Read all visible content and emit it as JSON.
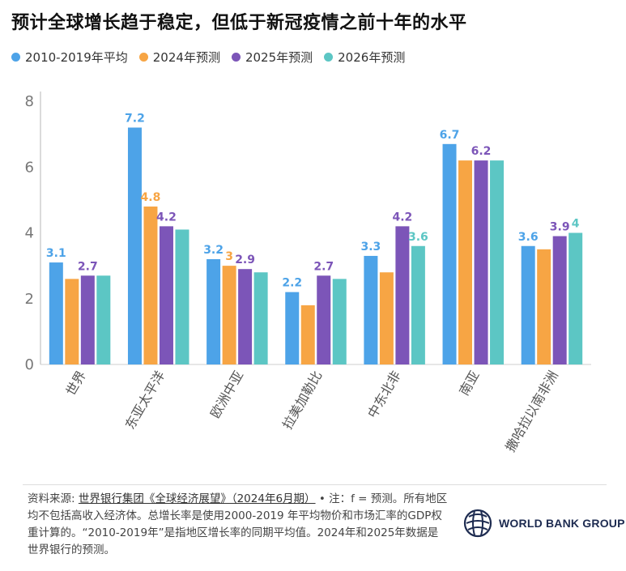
{
  "title": "预计全球增长趋于稳定，但低于新冠疫情之前十年的水平",
  "chart_data": {
    "type": "bar",
    "categories": [
      "世界",
      "东亚太平洋",
      "欧洲中亚",
      "拉美加勒比",
      "中东北非",
      "南亚",
      "撒哈拉以南非洲"
    ],
    "series": [
      {
        "name": "2010-2019年平均",
        "color": "#4da3e8",
        "values": [
          3.1,
          7.2,
          3.2,
          2.2,
          3.3,
          6.7,
          3.6
        ]
      },
      {
        "name": "2024年预测",
        "color": "#f7a544",
        "values": [
          2.6,
          4.8,
          3.0,
          1.8,
          2.8,
          6.2,
          3.5
        ]
      },
      {
        "name": "2025年预测",
        "color": "#7c55b8",
        "values": [
          2.7,
          4.2,
          2.9,
          2.7,
          4.2,
          6.2,
          3.9
        ]
      },
      {
        "name": "2026年预测",
        "color": "#5cc6c4",
        "values": [
          2.7,
          4.1,
          2.8,
          2.6,
          3.6,
          6.2,
          4.0
        ]
      }
    ],
    "data_labels": [
      [
        "3.1",
        "",
        "2.7",
        ""
      ],
      [
        "7.2",
        "4.8",
        "4.2",
        ""
      ],
      [
        "3.2",
        "3",
        "2.9",
        ""
      ],
      [
        "2.2",
        "",
        "2.7",
        ""
      ],
      [
        "3.3",
        "",
        "4.2",
        "3.6"
      ],
      [
        "6.7",
        "",
        "6.2",
        ""
      ],
      [
        "3.6",
        "",
        "3.9",
        "4"
      ]
    ],
    "yticks": [
      "0",
      "2",
      "4",
      "6",
      "8"
    ],
    "ylim": [
      0,
      8
    ],
    "grid": false,
    "legend_position": "top-left"
  },
  "footnote": {
    "prefix": "资料来源: ",
    "source_link": "世界银行集团《全球经济展望》（2024年6月期）",
    "text": " • 注：f = 预测。所有地区均不包括高收入经济体。总增长率是使用2000-2019 年平均物价和市场汇率的GDP权重计算的。“2010-2019年”是指地区增长率的同期平均值。2024年和2025年数据是世界银行的预测。"
  },
  "logo": {
    "text": "WORLD BANK GROUP",
    "icon": "globe-icon",
    "color": "#1d2b50"
  }
}
